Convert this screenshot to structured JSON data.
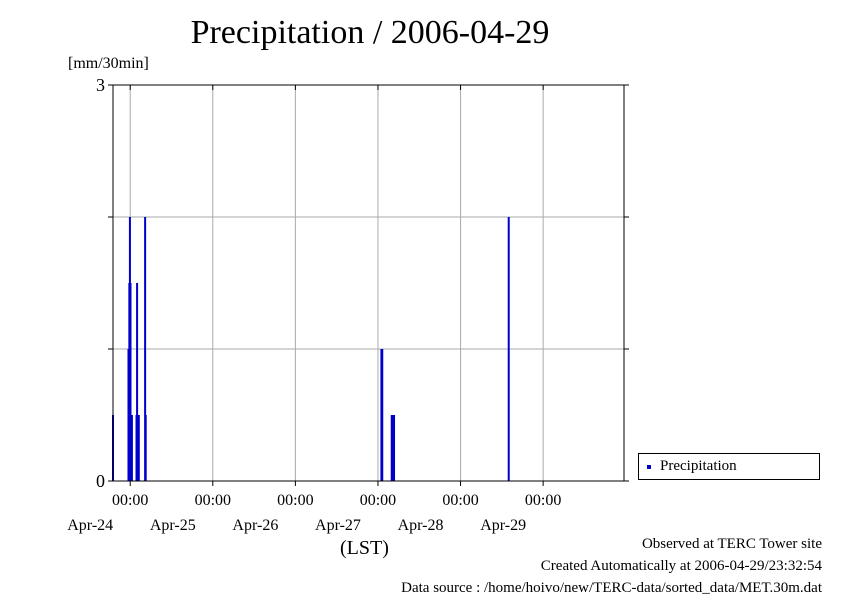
{
  "title": "Precipitation / 2006-04-29",
  "unit_label": "[mm/30min]",
  "x_caption": "(LST)",
  "legend": {
    "label": "Precipitation"
  },
  "footer": {
    "line1": "Observed at TERC Tower site",
    "line2": "Created Automatically at 2006-04-29/23:32:54",
    "line3": "Data source : /home/hoivo/new/TERC-data/sorted_data/MET.30m.dat"
  },
  "colors": {
    "series": "#0000cc",
    "grid": "#aaaaaa",
    "axis": "#000000"
  },
  "chart_data": {
    "type": "bar",
    "ylim": [
      0,
      3
    ],
    "y_ticks": [
      {
        "value": 0,
        "label": "0"
      },
      {
        "value": 1,
        "label": ""
      },
      {
        "value": 2,
        "label": ""
      },
      {
        "value": 3,
        "label": "3"
      }
    ],
    "xlim": [
      "2006-04-23 19:00",
      "2006-04-29 23:30"
    ],
    "x_ticks": [
      {
        "time": "2006-04-24 00:00",
        "time_label": "00:00",
        "date_label": "Apr-24"
      },
      {
        "time": "2006-04-25 00:00",
        "time_label": "00:00",
        "date_label": "Apr-25"
      },
      {
        "time": "2006-04-26 00:00",
        "time_label": "00:00",
        "date_label": "Apr-26"
      },
      {
        "time": "2006-04-27 00:00",
        "time_label": "00:00",
        "date_label": "Apr-27"
      },
      {
        "time": "2006-04-28 00:00",
        "time_label": "00:00",
        "date_label": "Apr-28"
      },
      {
        "time": "2006-04-29 00:00",
        "time_label": "00:00",
        "date_label": "Apr-29"
      }
    ],
    "grid": true,
    "legend_position": "right",
    "series": [
      {
        "name": "Precipitation",
        "unit": "mm/30min",
        "points": [
          {
            "time": "2006-04-23 19:00",
            "value": 0.5
          },
          {
            "time": "2006-04-23 23:30",
            "value": 1.0
          },
          {
            "time": "2006-04-23 23:45",
            "value": 1.5
          },
          {
            "time": "2006-04-23 23:55",
            "value": 2.0
          },
          {
            "time": "2006-04-24 00:05",
            "value": 1.5
          },
          {
            "time": "2006-04-24 00:10",
            "value": 0.5
          },
          {
            "time": "2006-04-24 00:20",
            "value": 0.5
          },
          {
            "time": "2006-04-24 00:30",
            "value": 0.5
          },
          {
            "time": "2006-04-24 01:50",
            "value": 0.5
          },
          {
            "time": "2006-04-24 02:00",
            "value": 1.5
          },
          {
            "time": "2006-04-24 02:10",
            "value": 0.5
          },
          {
            "time": "2006-04-24 02:30",
            "value": 0.5
          },
          {
            "time": "2006-04-24 04:20",
            "value": 2.0
          },
          {
            "time": "2006-04-24 04:30",
            "value": 0.5
          },
          {
            "time": "2006-04-27 01:00",
            "value": 1.0
          },
          {
            "time": "2006-04-27 01:05",
            "value": 0.5
          },
          {
            "time": "2006-04-27 01:15",
            "value": 1.0
          },
          {
            "time": "2006-04-27 04:00",
            "value": 0.5
          },
          {
            "time": "2006-04-27 04:10",
            "value": 0.5
          },
          {
            "time": "2006-04-27 04:20",
            "value": 0.5
          },
          {
            "time": "2006-04-27 04:40",
            "value": 0.5
          },
          {
            "time": "2006-04-28 14:00",
            "value": 2.0
          }
        ]
      }
    ]
  }
}
